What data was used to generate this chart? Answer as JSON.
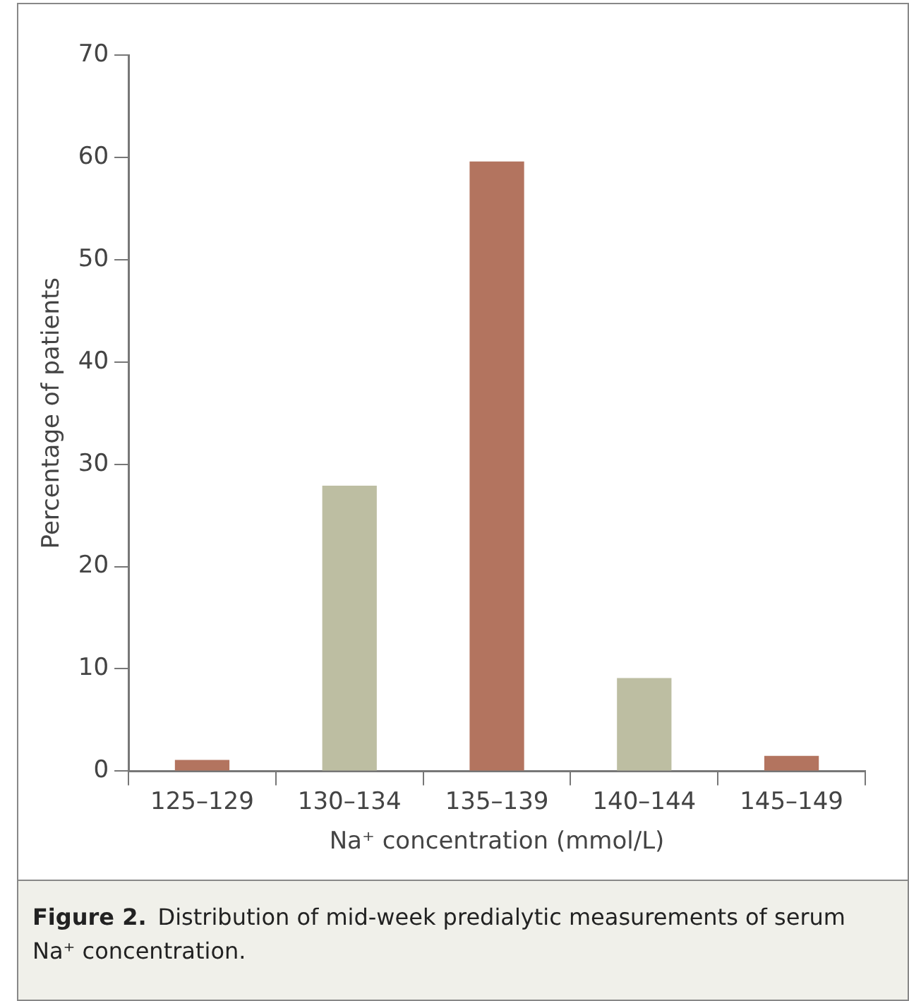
{
  "chart_data": {
    "type": "bar",
    "xlabel": "Na⁺ concentration (mmol/L)",
    "ylabel": "Percentage of patients",
    "categories": [
      "125–129",
      "130–134",
      "135–139",
      "140–144",
      "145–149"
    ],
    "values": [
      1.1,
      27.9,
      59.6,
      9.1,
      1.5
    ],
    "colors": [
      "#b3745f",
      "#bdbea2",
      "#b3745f",
      "#bdbea2",
      "#b3745f"
    ],
    "ylim": [
      0,
      70
    ],
    "yticks": [
      0,
      10,
      20,
      30,
      40,
      50,
      60,
      70
    ],
    "grid": false,
    "legend": false,
    "annotations": [
      "Figure 2.",
      "Distribution of mid-week predialytic measurements of serum Na⁺ concentration."
    ]
  }
}
